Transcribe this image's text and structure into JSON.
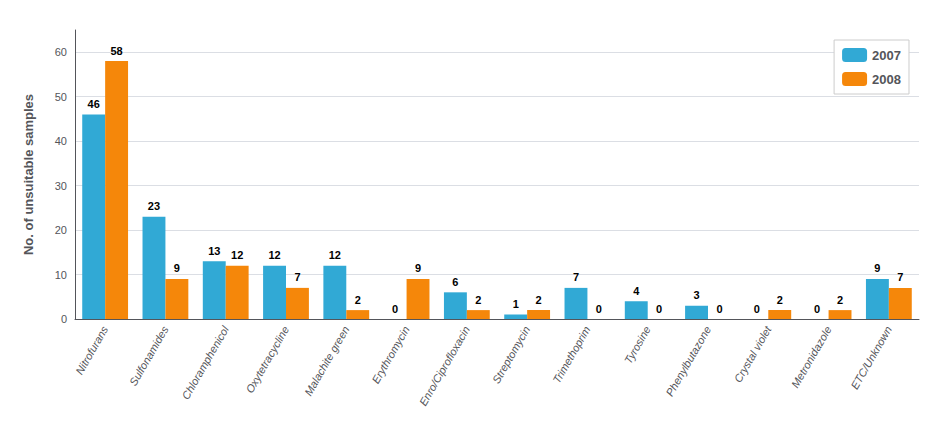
{
  "chart_data": {
    "type": "bar",
    "categories": [
      "Nitrofurans",
      "Sulfonamides",
      "Chloramphenicol",
      "Oxytetracycline",
      "Malachite green",
      "Erythromycin",
      "Enro/Ciprofloxacin",
      "Streptomycin",
      "Trimethoprim",
      "Tyrosine",
      "Phenylbutazone",
      "Crystal violet",
      "Metronidazole",
      "ETC/Unknown"
    ],
    "series": [
      {
        "name": "2007",
        "color": "#31A9D5",
        "values": [
          46,
          23,
          13,
          12,
          12,
          0,
          6,
          1,
          7,
          4,
          3,
          0,
          0,
          9
        ]
      },
      {
        "name": "2008",
        "color": "#F5870A",
        "values": [
          58,
          9,
          12,
          7,
          2,
          9,
          2,
          2,
          0,
          0,
          0,
          2,
          2,
          7
        ]
      }
    ],
    "ylabel": "No. of unsuitable samples",
    "ylim": [
      0,
      65
    ],
    "yticks": [
      0,
      10,
      20,
      30,
      40,
      50,
      60
    ],
    "grid": true,
    "legend": "upper right",
    "data_labels": true
  }
}
